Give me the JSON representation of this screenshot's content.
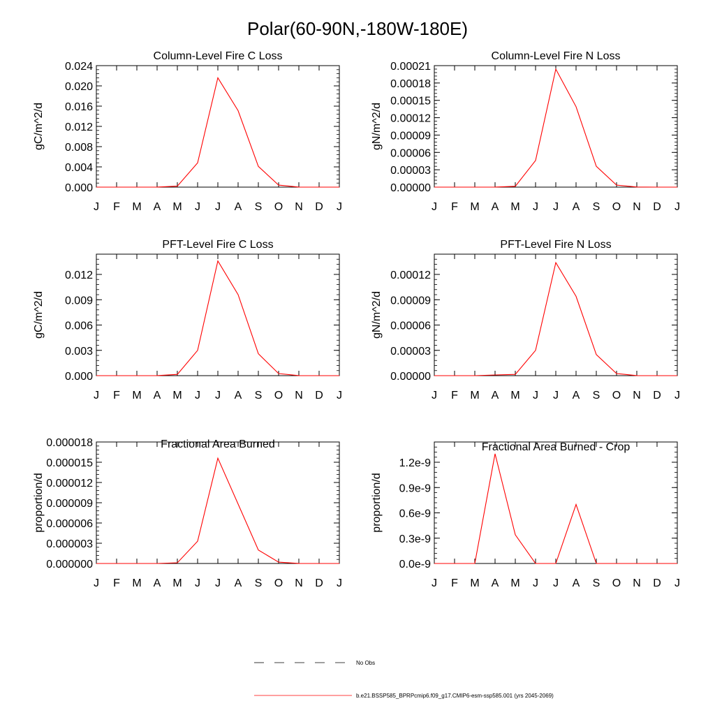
{
  "figure_title": "Polar(60-90N,-180W-180E)",
  "legend": {
    "obs_label": "No Obs",
    "model_label": "b.e21.BSSP585_BPRPcmip6.f09_g17.CMIP6-esm-ssp585.001 (yrs 2045-2069)",
    "model_color": "#ff0000",
    "obs_color": "#000000"
  },
  "chart_data": [
    {
      "type": "line",
      "title": "Column-Level Fire C Loss",
      "ylabel": "gC/m^2/d",
      "categories": [
        "J",
        "F",
        "M",
        "A",
        "M",
        "J",
        "J",
        "A",
        "S",
        "O",
        "N",
        "D",
        "J"
      ],
      "ylim": [
        0,
        0.024
      ],
      "yticks": [
        "0.000",
        "0.004",
        "0.008",
        "0.012",
        "0.016",
        "0.020",
        "0.024"
      ],
      "series": [
        {
          "values": [
            0,
            0,
            0,
            1e-05,
            0.0002,
            0.0048,
            0.0216,
            0.0151,
            0.0041,
            0.0004,
            2e-05,
            0,
            0
          ]
        }
      ]
    },
    {
      "type": "line",
      "title": "Column-Level Fire N Loss",
      "ylabel": "gN/m^2/d",
      "categories": [
        "J",
        "F",
        "M",
        "A",
        "M",
        "J",
        "J",
        "A",
        "S",
        "O",
        "N",
        "D",
        "J"
      ],
      "ylim": [
        0,
        0.00021
      ],
      "yticks": [
        "0.00000",
        "0.00003",
        "0.00006",
        "0.00009",
        "0.00012",
        "0.00015",
        "0.00018",
        "0.00021"
      ],
      "series": [
        {
          "values": [
            0,
            0,
            0,
            1e-07,
            1.5e-06,
            4.6e-05,
            0.000204,
            0.000139,
            3.6e-05,
            3.5e-06,
            2e-07,
            0,
            0
          ]
        }
      ]
    },
    {
      "type": "line",
      "title": "PFT-Level Fire C Loss",
      "ylabel": "gC/m^2/d",
      "categories": [
        "J",
        "F",
        "M",
        "A",
        "M",
        "J",
        "J",
        "A",
        "S",
        "O",
        "N",
        "D",
        "J"
      ],
      "ylim": [
        0,
        0.0144
      ],
      "yticks": [
        "0.000",
        "0.003",
        "0.006",
        "0.009",
        "0.012"
      ],
      "series": [
        {
          "values": [
            0,
            0,
            0,
            1e-05,
            0.00015,
            0.003,
            0.0136,
            0.0096,
            0.0026,
            0.00025,
            1e-05,
            0,
            0
          ]
        }
      ]
    },
    {
      "type": "line",
      "title": "PFT-Level Fire N Loss",
      "ylabel": "gN/m^2/d",
      "categories": [
        "J",
        "F",
        "M",
        "A",
        "M",
        "J",
        "J",
        "A",
        "S",
        "O",
        "N",
        "D",
        "J"
      ],
      "ylim": [
        0,
        0.000144
      ],
      "yticks": [
        "0.00000",
        "0.00003",
        "0.00006",
        "0.00009",
        "0.00012"
      ],
      "series": [
        {
          "values": [
            0,
            0,
            0,
            8e-07,
            1.5e-06,
            3e-05,
            0.000134,
            9.4e-05,
            2.5e-05,
            2.5e-06,
            1e-07,
            0,
            0
          ]
        }
      ]
    },
    {
      "type": "line",
      "title": "Fractional Area Burned",
      "ylabel": "proportion/d",
      "categories": [
        "J",
        "F",
        "M",
        "A",
        "M",
        "J",
        "J",
        "A",
        "S",
        "O",
        "N",
        "D",
        "J"
      ],
      "ylim": [
        0,
        1.8e-05
      ],
      "yticks": [
        "0.000000",
        "0.000003",
        "0.000006",
        "0.000009",
        "0.000012",
        "0.000015",
        "0.000018"
      ],
      "series": [
        {
          "values": [
            0,
            0,
            0,
            5e-09,
            1e-07,
            3.3e-06,
            1.56e-05,
            8.8e-06,
            2e-06,
            2e-07,
            1e-08,
            0,
            0
          ]
        }
      ]
    },
    {
      "type": "line",
      "title": "Fractional Area Burned - Crop",
      "ylabel": "proportion/d",
      "categories": [
        "J",
        "F",
        "M",
        "A",
        "M",
        "J",
        "J",
        "A",
        "S",
        "O",
        "N",
        "D",
        "J"
      ],
      "ylim": [
        0,
        1.44e-09
      ],
      "yticks": [
        "0.0e-9",
        "0.3e-9",
        "0.6e-9",
        "0.9e-9",
        "1.2e-9"
      ],
      "series": [
        {
          "values": [
            0,
            0,
            0,
            1.3e-09,
            3.4e-10,
            0,
            0,
            7e-10,
            0,
            0,
            0,
            0,
            0
          ]
        }
      ]
    }
  ]
}
